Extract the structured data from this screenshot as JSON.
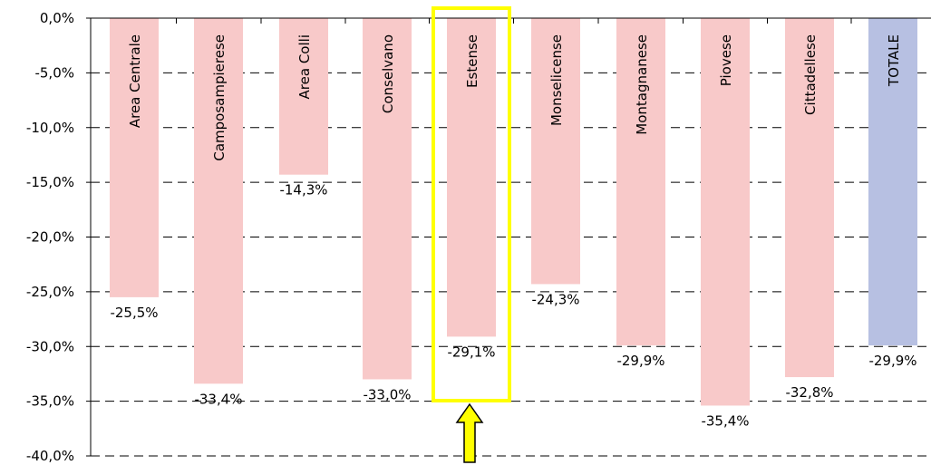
{
  "chart_data": {
    "type": "bar",
    "categories": [
      "Area Centrale",
      "Camposampierese",
      "Area Colli",
      "Conselvano",
      "Estense",
      "Monselicense",
      "Montagnanese",
      "Piovese",
      "Cittadellese",
      "TOTALE"
    ],
    "values": [
      -25.5,
      -33.4,
      -14.3,
      -33.0,
      -29.1,
      -24.3,
      -29.9,
      -35.4,
      -32.8,
      -29.9
    ],
    "data_labels": [
      "-25,5%",
      "-33,4%",
      "-14,3%",
      "-33,0%",
      "-29,1%",
      "-24,3%",
      "-29,9%",
      "-35,4%",
      "-32,8%",
      "-29,9%"
    ],
    "y_ticks": [
      0,
      -5,
      -10,
      -15,
      -20,
      -25,
      -30,
      -35,
      -40
    ],
    "y_tick_labels": [
      "0,0%",
      "-5,0%",
      "-10,0%",
      "-15,0%",
      "-20,0%",
      "-25,0%",
      "-30,0%",
      "-35,0%",
      "-40,0%"
    ],
    "ylim": [
      -40,
      0
    ],
    "grid": true,
    "highlighted_category": "Estense",
    "title": "",
    "xlabel": "",
    "ylabel": "",
    "colors": {
      "bar": "#f8c9c9",
      "total_bar": "#b7c0e2",
      "highlight_box": "#ffff00",
      "arrow_fill": "#ffff00"
    }
  }
}
